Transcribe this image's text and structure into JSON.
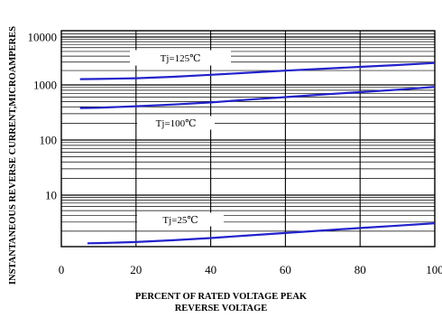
{
  "chart_data": {
    "type": "line",
    "xlabel_line1": "PERCENT OF RATED VOLTAGE PEAK",
    "xlabel_line2": "REVERSE VOLTAGE",
    "ylabel": "INSTANTANEOUS REVERSE CURRENT,MICROAMPERES",
    "xlim": [
      0,
      100
    ],
    "ylim": [
      1,
      10000
    ],
    "yscale": "log",
    "grid": true,
    "x_ticks": [
      {
        "value": 0,
        "label": "0"
      },
      {
        "value": 20,
        "label": "20"
      },
      {
        "value": 40,
        "label": "40"
      },
      {
        "value": 60,
        "label": "60"
      },
      {
        "value": 80,
        "label": "80"
      },
      {
        "value": 100,
        "label": "100"
      }
    ],
    "y_ticks": [
      {
        "value": 10,
        "label": "10"
      },
      {
        "value": 100,
        "label": "100"
      },
      {
        "value": 1000,
        "label": "1000"
      },
      {
        "value": 10000,
        "label": "10000"
      }
    ],
    "line_color": "#2222cc",
    "series": [
      {
        "name": "Tj=125℃",
        "x": [
          5,
          10,
          20,
          30,
          40,
          50,
          60,
          70,
          80,
          90,
          100
        ],
        "y": [
          1320,
          1330,
          1380,
          1480,
          1630,
          1800,
          1990,
          2180,
          2380,
          2600,
          2880
        ]
      },
      {
        "name": "Tj=100℃",
        "x": [
          5,
          10,
          20,
          30,
          40,
          50,
          60,
          70,
          80,
          90,
          100
        ],
        "y": [
          380,
          385,
          410,
          440,
          480,
          540,
          600,
          670,
          740,
          820,
          920
        ]
      },
      {
        "name": "Tj=25℃",
        "x": [
          7,
          10,
          20,
          30,
          40,
          50,
          60,
          70,
          80,
          90,
          100
        ],
        "y": [
          1.16,
          1.17,
          1.23,
          1.33,
          1.47,
          1.65,
          1.84,
          2.06,
          2.3,
          2.55,
          2.85
        ]
      }
    ]
  }
}
